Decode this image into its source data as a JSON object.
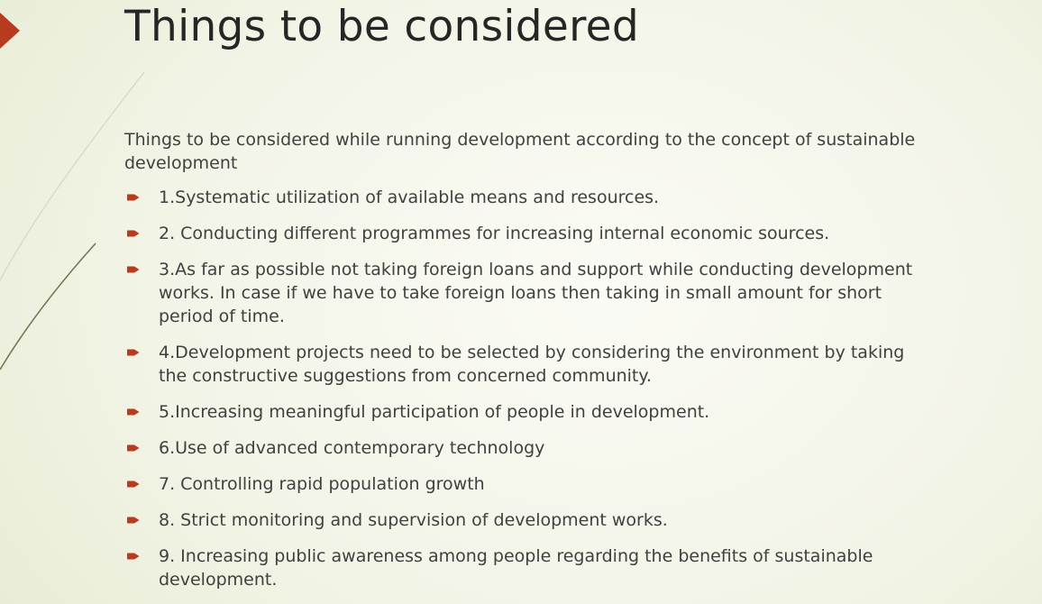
{
  "slide": {
    "title": "Things to be considered",
    "intro": "Things to be considered while running development according to the concept of sustainable development",
    "items": [
      "1.Systematic utilization of available means and resources.",
      "2. Conducting different programmes for increasing internal economic sources.",
      "3.As far as possible not taking foreign loans and support while conducting development works. In case if we have to take foreign loans then taking in small amount for short period of time.",
      "4.Development projects need to be selected by considering the environment by taking the constructive suggestions from concerned community.",
      "5.Increasing meaningful participation of people in development.",
      "6.Use of advanced contemporary technology",
      "7. Controlling rapid population growth",
      "8. Strict monitoring and supervision of development works.",
      "9. Increasing public awareness among people regarding the benefits of sustainable development."
    ]
  },
  "colors": {
    "accent": "#b83a1f",
    "title_text": "#262626",
    "body_text": "#404040",
    "background": "#f2f4e6"
  },
  "icons": {
    "corner_tab": "triangle-accent-icon",
    "bullet": "arrow-bullet-icon"
  }
}
